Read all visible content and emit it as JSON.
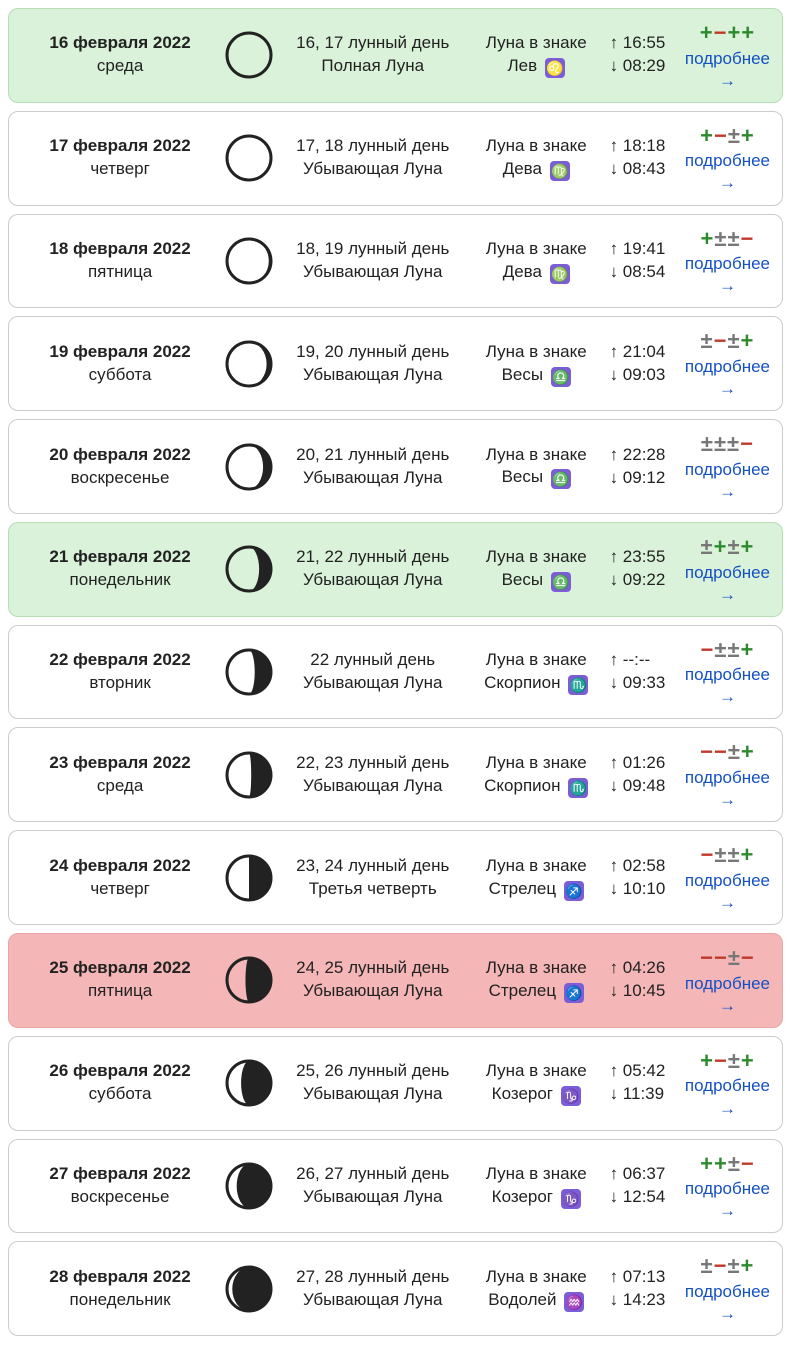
{
  "labels": {
    "sign_label": "Луна в знаке",
    "more": "подробнее →"
  },
  "zodiac_glyphs": {
    "leo": "♌",
    "virgo": "♍",
    "libra": "♎",
    "scorpio": "♏",
    "sagittarius": "♐",
    "capricorn": "♑",
    "aquarius": "♒"
  },
  "rows": [
    {
      "bg": "green",
      "date": "16 февраля 2022",
      "weekday": "среда",
      "moon_phase": 0.0,
      "waning": false,
      "lunar_day": "16, 17 лунный день",
      "phase_name": "Полная Луна",
      "sign_name": "Лев",
      "sign_key": "leo",
      "rise": "16:55",
      "set": "08:29",
      "ratings": [
        "+",
        "-",
        "+",
        "+"
      ]
    },
    {
      "bg": "white",
      "date": "17 февраля 2022",
      "weekday": "четверг",
      "moon_phase": 0.02,
      "waning": true,
      "lunar_day": "17, 18 лунный день",
      "phase_name": "Убывающая Луна",
      "sign_name": "Дева",
      "sign_key": "virgo",
      "rise": "18:18",
      "set": "08:43",
      "ratings": [
        "+",
        "-",
        "±",
        "+"
      ]
    },
    {
      "bg": "white",
      "date": "18 февраля 2022",
      "weekday": "пятница",
      "moon_phase": 0.05,
      "waning": true,
      "lunar_day": "18, 19 лунный день",
      "phase_name": "Убывающая Луна",
      "sign_name": "Дева",
      "sign_key": "virgo",
      "rise": "19:41",
      "set": "08:54",
      "ratings": [
        "+",
        "±",
        "±",
        "-"
      ]
    },
    {
      "bg": "white",
      "date": "19 февраля 2022",
      "weekday": "суббота",
      "moon_phase": 0.1,
      "waning": true,
      "lunar_day": "19, 20 лунный день",
      "phase_name": "Убывающая Луна",
      "sign_name": "Весы",
      "sign_key": "libra",
      "rise": "21:04",
      "set": "09:03",
      "ratings": [
        "±",
        "-",
        "±",
        "+"
      ]
    },
    {
      "bg": "white",
      "date": "20 февраля 2022",
      "weekday": "воскресенье",
      "moon_phase": 0.18,
      "waning": true,
      "lunar_day": "20, 21 лунный день",
      "phase_name": "Убывающая Луна",
      "sign_name": "Весы",
      "sign_key": "libra",
      "rise": "22:28",
      "set": "09:12",
      "ratings": [
        "±",
        "±",
        "±",
        "-"
      ]
    },
    {
      "bg": "green",
      "date": "21 февраля 2022",
      "weekday": "понедельник",
      "moon_phase": 0.27,
      "waning": true,
      "lunar_day": "21, 22 лунный день",
      "phase_name": "Убывающая Луна",
      "sign_name": "Весы",
      "sign_key": "libra",
      "rise": "23:55",
      "set": "09:22",
      "ratings": [
        "±",
        "+",
        "±",
        "+"
      ]
    },
    {
      "bg": "white",
      "date": "22 февраля 2022",
      "weekday": "вторник",
      "moon_phase": 0.37,
      "waning": true,
      "lunar_day": "22 лунный день",
      "phase_name": "Убывающая Луна",
      "sign_name": "Скорпион",
      "sign_key": "scorpio",
      "rise": "--:--",
      "set": "09:33",
      "ratings": [
        "-",
        "±",
        "±",
        "+"
      ]
    },
    {
      "bg": "white",
      "date": "23 февраля 2022",
      "weekday": "среда",
      "moon_phase": 0.45,
      "waning": true,
      "lunar_day": "22, 23 лунный день",
      "phase_name": "Убывающая Луна",
      "sign_name": "Скорпион",
      "sign_key": "scorpio",
      "rise": "01:26",
      "set": "09:48",
      "ratings": [
        "-",
        "-",
        "±",
        "+"
      ]
    },
    {
      "bg": "white",
      "date": "24 февраля 2022",
      "weekday": "четверг",
      "moon_phase": 0.5,
      "waning": true,
      "lunar_day": "23, 24 лунный день",
      "phase_name": "Третья четверть",
      "sign_name": "Стрелец",
      "sign_key": "sagittarius",
      "rise": "02:58",
      "set": "10:10",
      "ratings": [
        "-",
        "±",
        "±",
        "+"
      ]
    },
    {
      "bg": "red",
      "date": "25 февраля 2022",
      "weekday": "пятница",
      "moon_phase": 0.58,
      "waning": true,
      "lunar_day": "24, 25 лунный день",
      "phase_name": "Убывающая Луна",
      "sign_name": "Стрелец",
      "sign_key": "sagittarius",
      "rise": "04:26",
      "set": "10:45",
      "ratings": [
        "-",
        "-",
        "±",
        "-"
      ]
    },
    {
      "bg": "white",
      "date": "26 февраля 2022",
      "weekday": "суббота",
      "moon_phase": 0.68,
      "waning": true,
      "lunar_day": "25, 26 лунный день",
      "phase_name": "Убывающая Луна",
      "sign_name": "Козерог",
      "sign_key": "capricorn",
      "rise": "05:42",
      "set": "11:39",
      "ratings": [
        "+",
        "-",
        "±",
        "+"
      ]
    },
    {
      "bg": "white",
      "date": "27 февраля 2022",
      "weekday": "воскресенье",
      "moon_phase": 0.78,
      "waning": true,
      "lunar_day": "26, 27 лунный день",
      "phase_name": "Убывающая Луна",
      "sign_name": "Козерог",
      "sign_key": "capricorn",
      "rise": "06:37",
      "set": "12:54",
      "ratings": [
        "+",
        "+",
        "±",
        "-"
      ]
    },
    {
      "bg": "white",
      "date": "28 февраля 2022",
      "weekday": "понедельник",
      "moon_phase": 0.88,
      "waning": true,
      "lunar_day": "27, 28 лунный день",
      "phase_name": "Убывающая Луна",
      "sign_name": "Водолей",
      "sign_key": "aquarius",
      "rise": "07:13",
      "set": "14:23",
      "ratings": [
        "±",
        "-",
        "±",
        "+"
      ]
    }
  ]
}
